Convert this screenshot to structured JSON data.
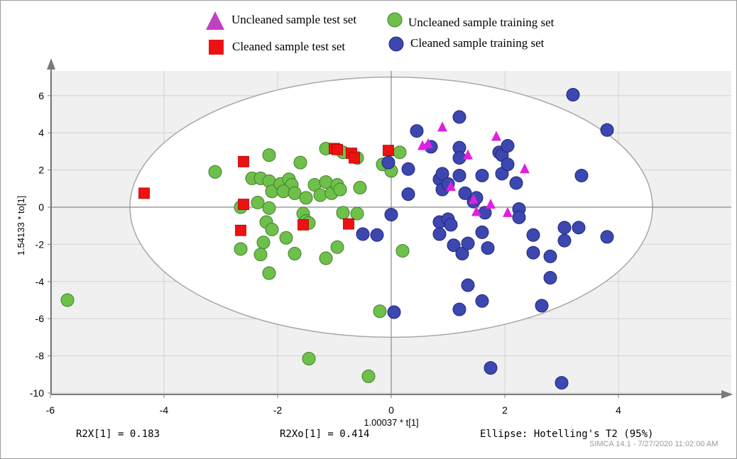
{
  "chart_data": {
    "type": "scatter",
    "xlabel": "1.00037 * t[1]",
    "ylabel": "1.54133 * to[1]",
    "xlim": [
      -6,
      6
    ],
    "ylim": [
      -10,
      7.5
    ],
    "x_ticks": [
      "-6",
      "-4",
      "-2",
      "0",
      "2",
      "4"
    ],
    "y_ticks": [
      "-10",
      "-8",
      "-6",
      "-4",
      "-2",
      "0",
      "2",
      "4",
      "6"
    ],
    "grid": true,
    "legend_position": "top",
    "ellipse": {
      "label": "Ellipse: Hotelling's T2 (95%)",
      "x_semi_axis": 4.6,
      "y_semi_axis": 7.0
    },
    "series": [
      {
        "name": "Uncleaned sample test set",
        "marker": "triangle",
        "color": "#e020e0",
        "points": [
          [
            0.55,
            3.3
          ],
          [
            0.65,
            3.4
          ],
          [
            0.9,
            4.3
          ],
          [
            1.35,
            2.8
          ],
          [
            1.85,
            3.8
          ],
          [
            2.35,
            2.05
          ],
          [
            1.05,
            1.1
          ],
          [
            1.5,
            -0.25
          ],
          [
            1.75,
            0.15
          ],
          [
            2.05,
            -0.3
          ],
          [
            1.45,
            0.4
          ]
        ]
      },
      {
        "name": "Uncleaned sample training set",
        "marker": "circle",
        "color": "#6ec04a",
        "points": [
          [
            -3.1,
            1.9
          ],
          [
            -2.45,
            1.55
          ],
          [
            -2.3,
            1.55
          ],
          [
            -2.15,
            2.8
          ],
          [
            -2.15,
            1.4
          ],
          [
            -2.1,
            0.85
          ],
          [
            -1.95,
            1.25
          ],
          [
            -1.8,
            1.5
          ],
          [
            -1.75,
            1.2
          ],
          [
            -1.6,
            2.4
          ],
          [
            -1.9,
            0.85
          ],
          [
            -1.7,
            0.75
          ],
          [
            -1.5,
            0.5
          ],
          [
            -1.35,
            1.2
          ],
          [
            -1.25,
            0.65
          ],
          [
            -1.15,
            1.35
          ],
          [
            -1.05,
            0.75
          ],
          [
            -0.95,
            1.2
          ],
          [
            -0.9,
            0.95
          ],
          [
            -1.15,
            3.15
          ],
          [
            -0.85,
            2.95
          ],
          [
            -0.6,
            2.65
          ],
          [
            -0.55,
            1.05
          ],
          [
            -0.15,
            2.3
          ],
          [
            0.15,
            2.95
          ],
          [
            0.0,
            1.95
          ],
          [
            -2.65,
            0.0
          ],
          [
            -2.35,
            0.25
          ],
          [
            -2.15,
            -0.05
          ],
          [
            -2.2,
            -0.8
          ],
          [
            -2.1,
            -1.2
          ],
          [
            -2.25,
            -1.9
          ],
          [
            -2.3,
            -2.55
          ],
          [
            -2.15,
            -3.55
          ],
          [
            -2.65,
            -2.25
          ],
          [
            -1.85,
            -1.65
          ],
          [
            -1.7,
            -2.5
          ],
          [
            -1.55,
            -0.35
          ],
          [
            -1.5,
            -0.75
          ],
          [
            -1.45,
            -0.85
          ],
          [
            -0.95,
            -2.15
          ],
          [
            -1.15,
            -2.75
          ],
          [
            -0.85,
            -0.3
          ],
          [
            -0.6,
            -0.35
          ],
          [
            0.2,
            -2.35
          ],
          [
            -0.2,
            -5.6
          ],
          [
            -1.45,
            -8.15
          ],
          [
            -0.4,
            -9.1
          ],
          [
            -5.7,
            -5.0
          ]
        ]
      },
      {
        "name": "Cleaned sample test set",
        "marker": "square",
        "color": "#ee1111",
        "points": [
          [
            -4.35,
            0.75
          ],
          [
            -2.6,
            2.45
          ],
          [
            -2.6,
            0.15
          ],
          [
            -2.65,
            -1.25
          ],
          [
            -1.55,
            -0.95
          ],
          [
            -1.0,
            3.15
          ],
          [
            -0.95,
            3.1
          ],
          [
            -0.7,
            2.9
          ],
          [
            -0.65,
            2.65
          ],
          [
            -0.05,
            3.05
          ],
          [
            -0.75,
            -0.9
          ]
        ]
      },
      {
        "name": "Cleaned sample training set",
        "marker": "circle",
        "color": "#3c47b0",
        "points": [
          [
            0.45,
            4.1
          ],
          [
            0.7,
            3.25
          ],
          [
            1.2,
            3.2
          ],
          [
            1.2,
            2.65
          ],
          [
            1.2,
            4.85
          ],
          [
            -0.05,
            2.4
          ],
          [
            0.3,
            2.05
          ],
          [
            0.85,
            1.5
          ],
          [
            0.9,
            1.8
          ],
          [
            0.9,
            0.95
          ],
          [
            1.0,
            1.25
          ],
          [
            1.2,
            1.7
          ],
          [
            1.3,
            0.75
          ],
          [
            1.45,
            0.3
          ],
          [
            1.6,
            1.7
          ],
          [
            1.5,
            0.5
          ],
          [
            1.65,
            -0.3
          ],
          [
            0.3,
            0.7
          ],
          [
            0.0,
            -0.4
          ],
          [
            -0.5,
            -1.45
          ],
          [
            -0.25,
            -1.5
          ],
          [
            0.85,
            -0.8
          ],
          [
            0.85,
            -1.45
          ],
          [
            1.0,
            -0.65
          ],
          [
            1.05,
            -0.95
          ],
          [
            1.1,
            -2.05
          ],
          [
            1.25,
            -2.5
          ],
          [
            1.35,
            -1.95
          ],
          [
            1.6,
            -1.35
          ],
          [
            1.7,
            -2.2
          ],
          [
            1.9,
            2.95
          ],
          [
            1.95,
            2.8
          ],
          [
            1.95,
            1.8
          ],
          [
            2.05,
            3.3
          ],
          [
            2.05,
            2.3
          ],
          [
            2.2,
            1.3
          ],
          [
            2.25,
            -0.1
          ],
          [
            2.25,
            -0.55
          ],
          [
            2.5,
            -1.5
          ],
          [
            2.5,
            -2.45
          ],
          [
            2.8,
            -2.65
          ],
          [
            3.05,
            -1.1
          ],
          [
            3.05,
            -1.8
          ],
          [
            3.3,
            -1.1
          ],
          [
            3.35,
            1.7
          ],
          [
            3.8,
            -1.6
          ],
          [
            3.8,
            4.15
          ],
          [
            3.2,
            6.05
          ],
          [
            1.35,
            -4.2
          ],
          [
            1.6,
            -5.05
          ],
          [
            1.2,
            -5.5
          ],
          [
            2.65,
            -5.3
          ],
          [
            2.8,
            -3.8
          ],
          [
            0.05,
            -5.65
          ],
          [
            1.75,
            -8.65
          ],
          [
            3.0,
            -9.45
          ]
        ]
      }
    ],
    "annotations": {
      "r2x": "R2X[1] = 0.183",
      "r2xo": "R2Xo[1] = 0.414",
      "ellipse_label": "Ellipse: Hotelling's T2 (95%)",
      "footer": "SIMCA 14.1 - 7/27/2020 11:02:00 AM"
    }
  }
}
